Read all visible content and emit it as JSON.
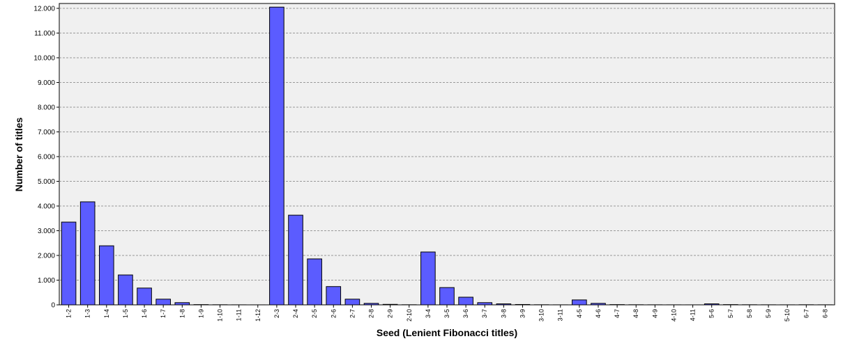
{
  "chart_data": {
    "type": "bar",
    "x_label": "Seed (Lenient Fibonacci titles)",
    "y_label": "Number of titles",
    "categories": [
      "1-2",
      "1-3",
      "1-4",
      "1-5",
      "1-6",
      "1-7",
      "1-8",
      "1-9",
      "1-10",
      "1-11",
      "1-12",
      "2-3",
      "2-4",
      "2-5",
      "2-6",
      "2-7",
      "2-8",
      "2-9",
      "2-10",
      "3-4",
      "3-5",
      "3-6",
      "3-7",
      "3-8",
      "3-9",
      "3-10",
      "3-11",
      "4-5",
      "4-6",
      "4-7",
      "4-8",
      "4-9",
      "4-10",
      "4-11",
      "5-6",
      "5-7",
      "5-8",
      "5-9",
      "5-10",
      "6-7",
      "6-8"
    ],
    "values": [
      3350,
      4170,
      2390,
      1210,
      680,
      230,
      90,
      10,
      5,
      2,
      1,
      12050,
      3630,
      1860,
      740,
      230,
      60,
      20,
      5,
      2140,
      700,
      310,
      90,
      40,
      15,
      5,
      2,
      200,
      60,
      10,
      5,
      3,
      2,
      1,
      40,
      10,
      5,
      3,
      2,
      5,
      3
    ],
    "color": "#5b5cff",
    "ylim": [
      0,
      12000
    ],
    "yticks": [
      0,
      {
        "value": 1000,
        "label": "1.000"
      },
      {
        "value": 2000,
        "label": "2.000"
      },
      {
        "value": 3000,
        "label": "3.000"
      },
      {
        "value": 4000,
        "label": "4.000"
      },
      {
        "value": 5000,
        "label": "5.000"
      },
      {
        "value": 6000,
        "label": "6.000"
      },
      {
        "value": 7000,
        "label": "7.000"
      },
      {
        "value": 8000,
        "label": "8.000"
      },
      {
        "value": 9000,
        "label": "9.000"
      },
      {
        "value": 10000,
        "label": "10.000"
      },
      {
        "value": 11000,
        "label": "11.000"
      },
      {
        "value": 12000,
        "label": "12.000"
      }
    ],
    "grid": true
  }
}
